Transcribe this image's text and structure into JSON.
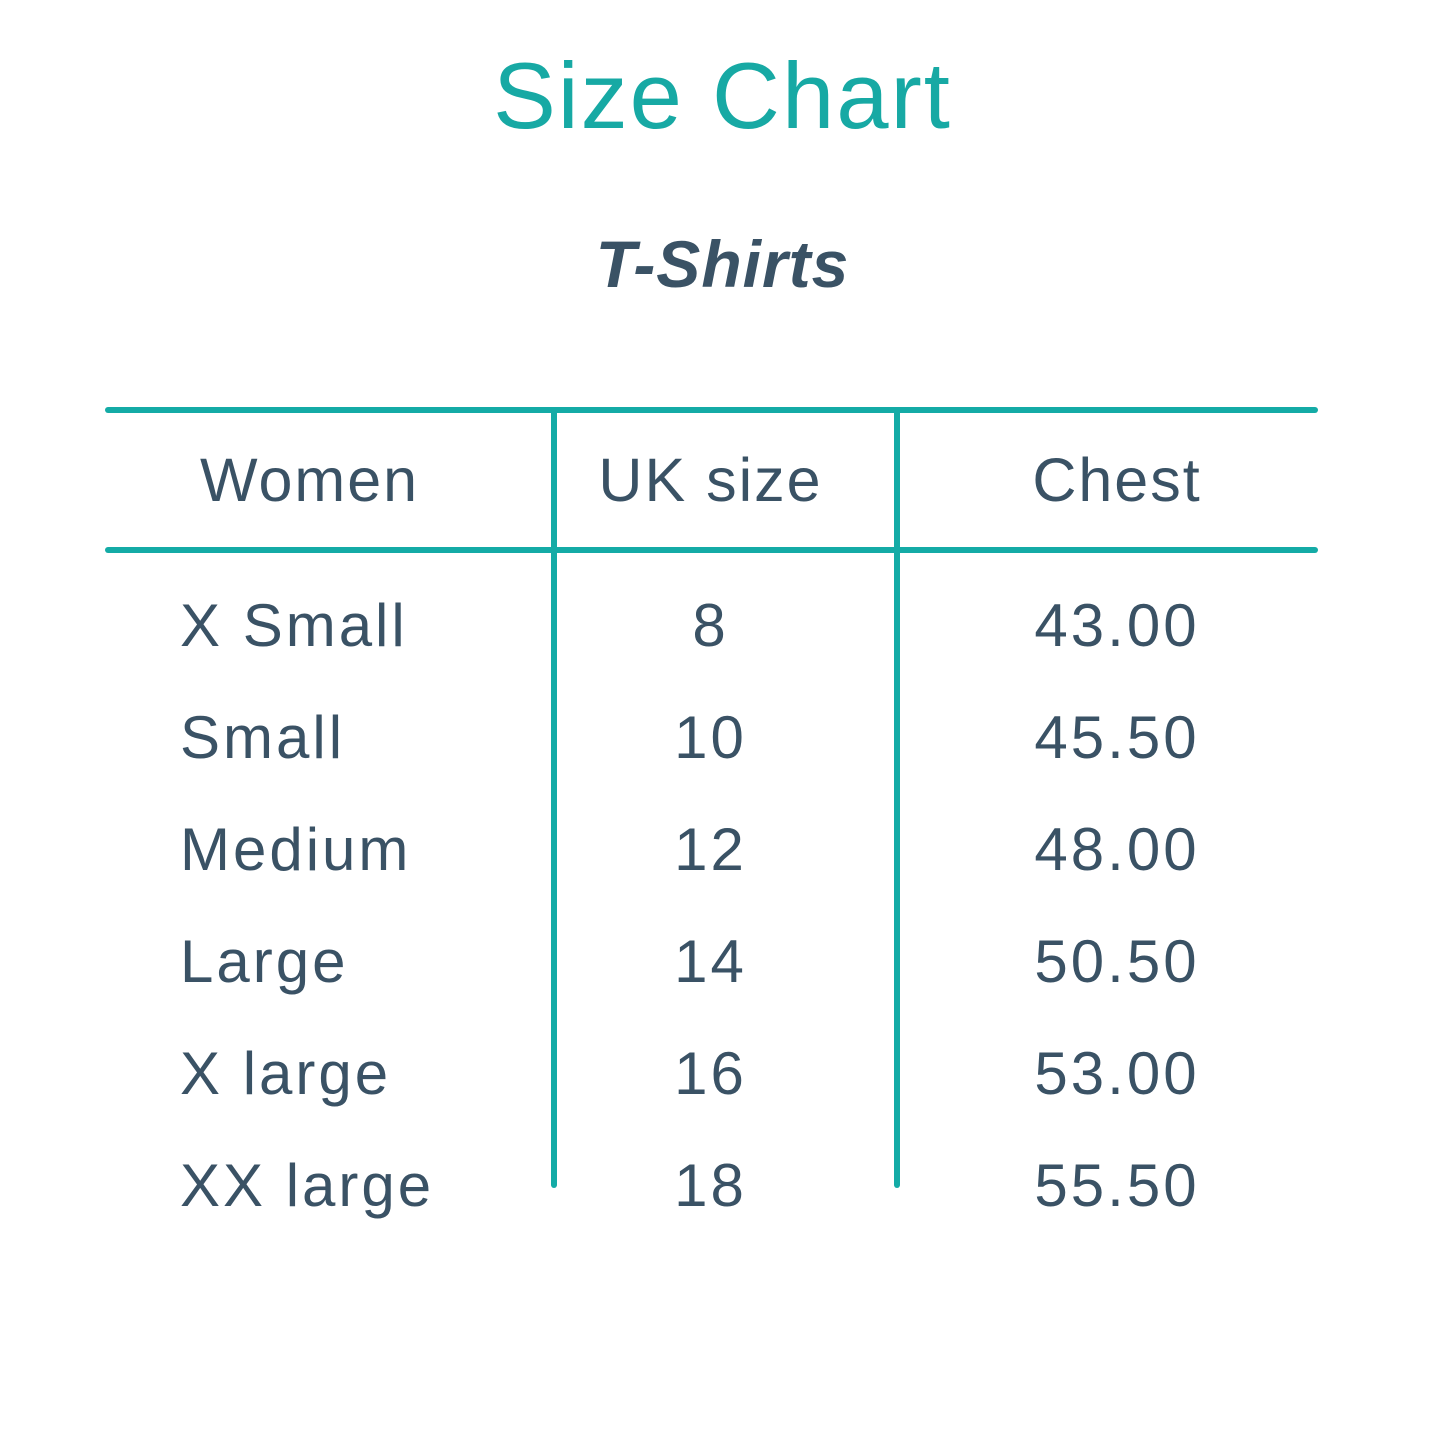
{
  "colors": {
    "accent_teal": "#17a9a4",
    "line_teal": "#14aba6",
    "text_slate": "#3a5265",
    "background": "#ffffff"
  },
  "chart_data": {
    "type": "table",
    "title": "Size Chart",
    "subtitle": "T-Shirts",
    "columns": [
      "Women",
      "UK size",
      "Chest"
    ],
    "rows": [
      [
        "X Small",
        "8",
        "43.00"
      ],
      [
        "Small",
        "10",
        "45.50"
      ],
      [
        "Medium",
        "12",
        "48.00"
      ],
      [
        "Large",
        "14",
        "50.50"
      ],
      [
        "X large",
        "16",
        "53.00"
      ],
      [
        "XX large",
        "18",
        "55.50"
      ]
    ]
  }
}
